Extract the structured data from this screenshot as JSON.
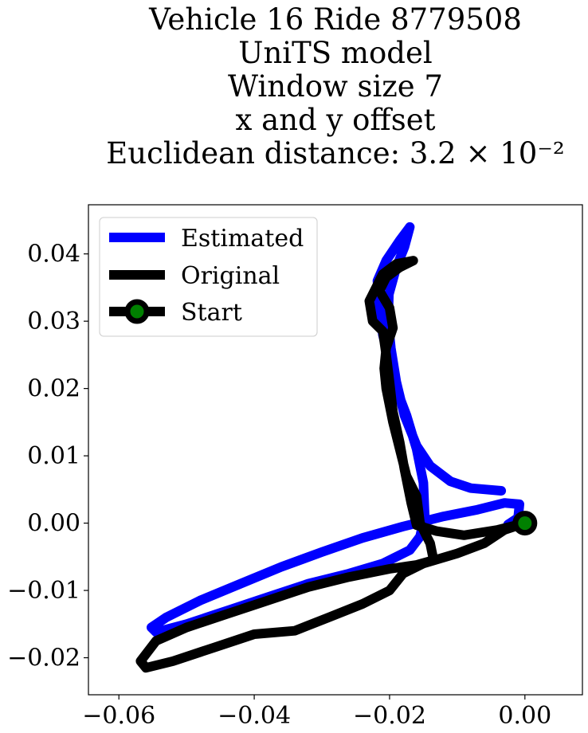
{
  "chart_data": {
    "type": "line",
    "title_lines": [
      "Vehicle 16 Ride 8779508",
      "UniTS model",
      "Window size 7",
      "x and y offset",
      "Euclidean distance: 3.2 × 10⁻²"
    ],
    "xlabel": "",
    "ylabel": "",
    "xlim": [
      -0.0645,
      0.0085
    ],
    "ylim": [
      -0.0255,
      0.0473
    ],
    "xticks": [
      -0.06,
      -0.04,
      -0.02,
      0.0
    ],
    "xtick_labels": [
      "−0.06",
      "−0.04",
      "−0.02",
      "0.00"
    ],
    "yticks": [
      -0.02,
      -0.01,
      0.0,
      0.01,
      0.02,
      0.03,
      0.04
    ],
    "ytick_labels": [
      "−0.02",
      "−0.01",
      "0.00",
      "0.01",
      "0.02",
      "0.03",
      "0.04"
    ],
    "grid": false,
    "legend_position": "top-left",
    "series": [
      {
        "name": "Estimated",
        "color": "#0000ff",
        "points": [
          [
            -0.0035,
            0.0048
          ],
          [
            -0.008,
            0.0052
          ],
          [
            -0.011,
            0.0062
          ],
          [
            -0.014,
            0.0085
          ],
          [
            -0.016,
            0.0115
          ],
          [
            -0.0178,
            0.016
          ],
          [
            -0.019,
            0.021
          ],
          [
            -0.0198,
            0.026
          ],
          [
            -0.0202,
            0.03
          ],
          [
            -0.0201,
            0.034
          ],
          [
            -0.019,
            0.038
          ],
          [
            -0.0178,
            0.041
          ],
          [
            -0.017,
            0.044
          ],
          [
            -0.0185,
            0.042
          ],
          [
            -0.0205,
            0.039
          ],
          [
            -0.0218,
            0.036
          ],
          [
            -0.0215,
            0.032
          ],
          [
            -0.021,
            0.028
          ],
          [
            -0.02,
            0.024
          ],
          [
            -0.019,
            0.02
          ],
          [
            -0.0175,
            0.016
          ],
          [
            -0.016,
            0.011
          ],
          [
            -0.015,
            0.006
          ],
          [
            -0.0148,
            0.001
          ],
          [
            -0.0155,
            -0.002
          ],
          [
            -0.017,
            -0.004
          ],
          [
            -0.021,
            -0.006
          ],
          [
            -0.026,
            -0.0075
          ],
          [
            -0.032,
            -0.009
          ],
          [
            -0.038,
            -0.011
          ],
          [
            -0.044,
            -0.013
          ],
          [
            -0.05,
            -0.015
          ],
          [
            -0.0545,
            -0.0162
          ],
          [
            -0.0552,
            -0.0155
          ],
          [
            -0.053,
            -0.014
          ],
          [
            -0.048,
            -0.0115
          ],
          [
            -0.042,
            -0.009
          ],
          [
            -0.036,
            -0.0065
          ],
          [
            -0.03,
            -0.0043
          ],
          [
            -0.024,
            -0.0022
          ],
          [
            -0.018,
            -0.0005
          ],
          [
            -0.012,
            0.001
          ],
          [
            -0.007,
            0.002
          ],
          [
            -0.003,
            0.003
          ],
          [
            -0.0008,
            0.0028
          ],
          [
            -0.001,
            0.0008
          ],
          [
            -0.0025,
            -0.0002
          ]
        ]
      },
      {
        "name": "Original",
        "color": "#000000",
        "points": [
          [
            0.0,
            0.0
          ],
          [
            -0.004,
            -0.001
          ],
          [
            -0.009,
            -0.0018
          ],
          [
            -0.013,
            -0.0012
          ],
          [
            -0.016,
            -0.0003
          ],
          [
            -0.0168,
            0.003
          ],
          [
            -0.0178,
            0.008
          ],
          [
            -0.0185,
            0.012
          ],
          [
            -0.0195,
            0.0165
          ],
          [
            -0.02,
            0.021
          ],
          [
            -0.0205,
            0.025
          ],
          [
            -0.021,
            0.0285
          ],
          [
            -0.0225,
            0.03
          ],
          [
            -0.023,
            0.033
          ],
          [
            -0.022,
            0.035
          ],
          [
            -0.021,
            0.037
          ],
          [
            -0.019,
            0.0385
          ],
          [
            -0.0165,
            0.039
          ],
          [
            -0.0185,
            0.038
          ],
          [
            -0.0205,
            0.0365
          ],
          [
            -0.0215,
            0.0345
          ],
          [
            -0.02,
            0.032
          ],
          [
            -0.0195,
            0.029
          ],
          [
            -0.0205,
            0.026
          ],
          [
            -0.0208,
            0.023
          ],
          [
            -0.0205,
            0.02
          ],
          [
            -0.0195,
            0.015
          ],
          [
            -0.0185,
            0.011
          ],
          [
            -0.0175,
            0.007
          ],
          [
            -0.016,
            0.004
          ],
          [
            -0.0155,
            0.0
          ],
          [
            -0.014,
            -0.003
          ],
          [
            -0.0135,
            -0.0055
          ],
          [
            -0.016,
            -0.0062
          ],
          [
            -0.02,
            -0.0068
          ],
          [
            -0.026,
            -0.008
          ],
          [
            -0.032,
            -0.0095
          ],
          [
            -0.038,
            -0.0115
          ],
          [
            -0.044,
            -0.0135
          ],
          [
            -0.05,
            -0.0155
          ],
          [
            -0.0545,
            -0.0175
          ],
          [
            -0.0568,
            -0.0205
          ],
          [
            -0.056,
            -0.0215
          ],
          [
            -0.052,
            -0.0205
          ],
          [
            -0.046,
            -0.0185
          ],
          [
            -0.04,
            -0.0165
          ],
          [
            -0.034,
            -0.016
          ],
          [
            -0.029,
            -0.014
          ],
          [
            -0.024,
            -0.012
          ],
          [
            -0.02,
            -0.01
          ],
          [
            -0.018,
            -0.0075
          ],
          [
            -0.015,
            -0.006
          ],
          [
            -0.01,
            -0.0045
          ],
          [
            -0.006,
            -0.003
          ],
          [
            -0.003,
            -0.001
          ],
          [
            0.0,
            0.0
          ]
        ]
      }
    ],
    "start_marker": {
      "name": "Start",
      "x": 0.0,
      "y": 0.0,
      "fill": "#008000",
      "edge": "#000000"
    }
  }
}
